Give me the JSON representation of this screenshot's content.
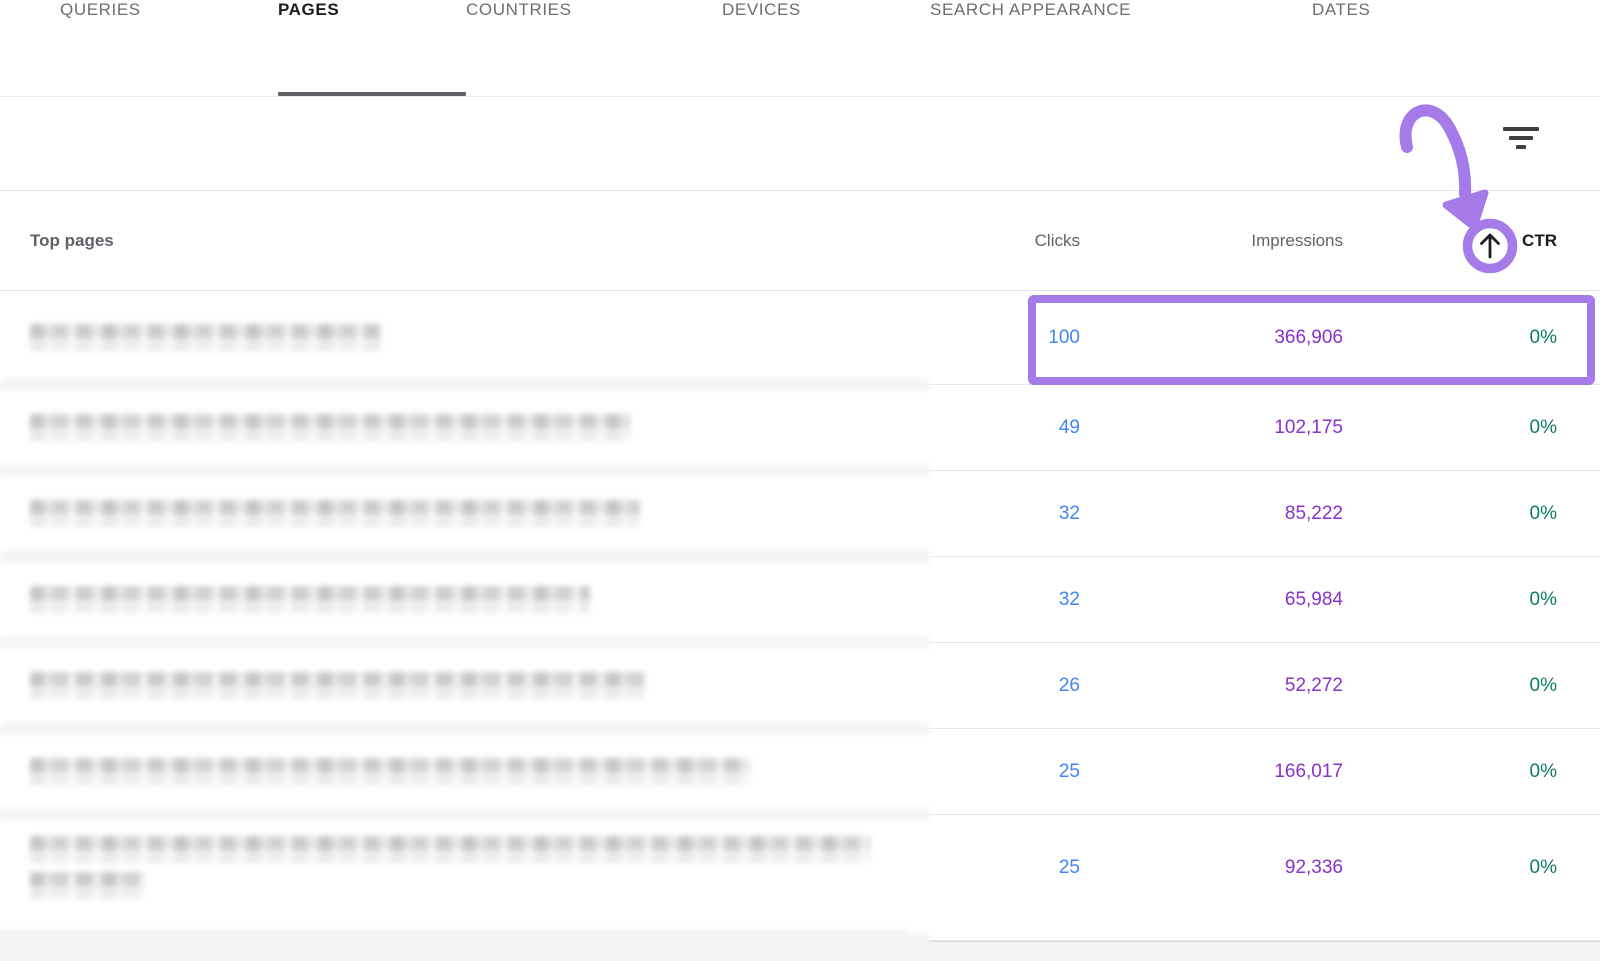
{
  "tabs": [
    {
      "label": "QUERIES",
      "active": false
    },
    {
      "label": "PAGES",
      "active": true
    },
    {
      "label": "COUNTRIES",
      "active": false
    },
    {
      "label": "DEVICES",
      "active": false
    },
    {
      "label": "SEARCH APPEARANCE",
      "active": false
    },
    {
      "label": "DATES",
      "active": false
    }
  ],
  "toolbar": {
    "filter_icon": "filter-sort-icon"
  },
  "table": {
    "page_header": "Top pages",
    "columns": [
      "Clicks",
      "Impressions",
      "CTR"
    ],
    "sort": {
      "column": "CTR",
      "direction": "ascending",
      "icon": "arrow-up-icon"
    },
    "rows": [
      {
        "page_redacted": true,
        "redacted_line_widths": [
          350
        ],
        "clicks": "100",
        "impressions": "366,906",
        "ctr": "0%",
        "highlighted": true
      },
      {
        "page_redacted": true,
        "redacted_line_widths": [
          600
        ],
        "clicks": "49",
        "impressions": "102,175",
        "ctr": "0%",
        "highlighted": false
      },
      {
        "page_redacted": true,
        "redacted_line_widths": [
          610
        ],
        "clicks": "32",
        "impressions": "85,222",
        "ctr": "0%",
        "highlighted": false
      },
      {
        "page_redacted": true,
        "redacted_line_widths": [
          560
        ],
        "clicks": "32",
        "impressions": "65,984",
        "ctr": "0%",
        "highlighted": false
      },
      {
        "page_redacted": true,
        "redacted_line_widths": [
          615
        ],
        "clicks": "26",
        "impressions": "52,272",
        "ctr": "0%",
        "highlighted": false
      },
      {
        "page_redacted": true,
        "redacted_line_widths": [
          720
        ],
        "clicks": "25",
        "impressions": "166,017",
        "ctr": "0%",
        "highlighted": false
      },
      {
        "page_redacted": true,
        "redacted_line_widths": [
          840,
          115
        ],
        "clicks": "25",
        "impressions": "92,336",
        "ctr": "0%",
        "highlighted": false
      }
    ]
  },
  "annotations": {
    "highlight_color": "#a47be8",
    "curved_arrow": "points-to-sort-arrow",
    "circled_element": "ctr-sort-ascending-arrow"
  },
  "colors": {
    "clicks": "#4285f4",
    "impressions": "#8832c8",
    "ctr": "#0d7a66",
    "active_tab_underline": "#5f6368"
  }
}
